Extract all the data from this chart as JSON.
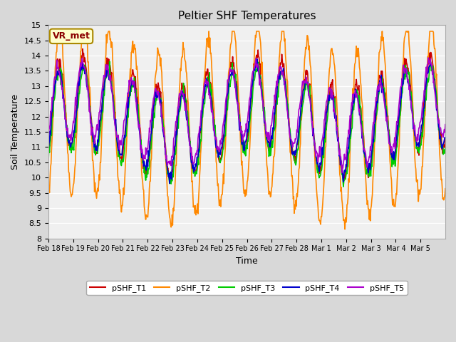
{
  "title": "Peltier SHF Temperatures",
  "xlabel": "Time",
  "ylabel": "Soil Temperature",
  "ylim": [
    8.0,
    15.0
  ],
  "yticks": [
    8.0,
    8.5,
    9.0,
    9.5,
    10.0,
    10.5,
    11.0,
    11.5,
    12.0,
    12.5,
    13.0,
    13.5,
    14.0,
    14.5,
    15.0
  ],
  "colors": {
    "pSHF_T1": "#cc0000",
    "pSHF_T2": "#ff8800",
    "pSHF_T3": "#00cc00",
    "pSHF_T4": "#0000cc",
    "pSHF_T5": "#aa00cc"
  },
  "legend_label": "VR_met",
  "linewidth": 1.2,
  "xtick_labels": [
    "Feb 18",
    "Feb 19",
    "Feb 20",
    "Feb 21",
    "Feb 22",
    "Feb 23",
    "Feb 24",
    "Feb 25",
    "Feb 26",
    "Feb 27",
    "Feb 28",
    "Mar 1",
    "Mar 2",
    "Mar 3",
    "Mar 4",
    "Mar 5"
  ],
  "n_days": 16
}
